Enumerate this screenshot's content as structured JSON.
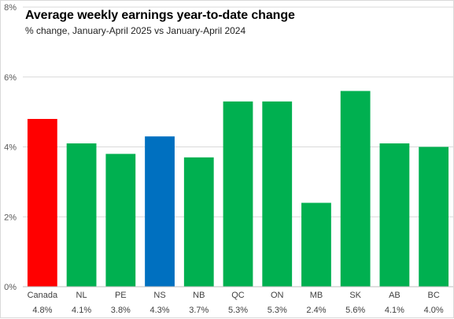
{
  "chart_data": {
    "type": "bar",
    "title": "Average weekly earnings year-to-date change",
    "subtitle": "% change, January-April  2025 vs January-April 2024",
    "xlabel": "",
    "ylabel": "",
    "ylim": [
      0,
      8
    ],
    "yticks": [
      {
        "value": 0,
        "label": "0%"
      },
      {
        "value": 2,
        "label": "2%"
      },
      {
        "value": 4,
        "label": "4%"
      },
      {
        "value": 6,
        "label": "6%"
      },
      {
        "value": 8,
        "label": "8%"
      }
    ],
    "grid": true,
    "legend": "none",
    "categories": [
      "Canada",
      "NL",
      "PE",
      "NS",
      "NB",
      "QC",
      "ON",
      "MB",
      "SK",
      "AB",
      "BC"
    ],
    "values": [
      4.8,
      4.1,
      3.8,
      4.3,
      3.7,
      5.3,
      5.3,
      2.4,
      5.6,
      4.1,
      4.0
    ],
    "data_labels": [
      "4.8%",
      "4.1%",
      "3.8%",
      "4.3%",
      "3.7%",
      "5.3%",
      "5.3%",
      "2.4%",
      "5.6%",
      "4.1%",
      "4.0%"
    ],
    "colors": [
      "#ff0000",
      "#00b050",
      "#00b050",
      "#0070c0",
      "#00b050",
      "#00b050",
      "#00b050",
      "#00b050",
      "#00b050",
      "#00b050",
      "#00b050"
    ]
  }
}
